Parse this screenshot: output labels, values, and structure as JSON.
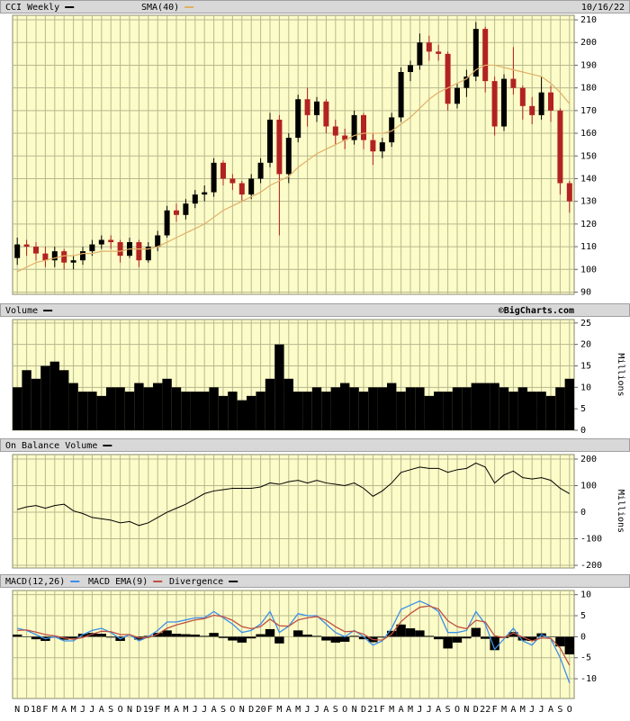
{
  "chart_data": [
    {
      "type": "candlestick",
      "date": "10/16/22",
      "down_color": "#b22222",
      "ylim": [
        89,
        212
      ],
      "yticks": [
        90,
        100,
        110,
        120,
        130,
        140,
        150,
        160,
        170,
        180,
        190,
        200,
        210
      ],
      "grid": true,
      "series": [
        {
          "name": "CCI Weekly",
          "color": "#000000",
          "open": [
            105,
            111,
            110,
            107,
            104,
            108,
            103,
            104,
            108,
            111,
            113,
            112,
            106,
            112,
            104,
            110,
            115,
            126,
            124,
            129,
            133,
            134,
            147,
            140,
            138,
            133,
            140,
            147,
            166,
            142,
            158,
            175,
            168,
            174,
            163,
            159,
            157,
            168,
            157,
            152,
            156,
            167,
            187,
            190,
            200,
            196,
            195,
            173,
            180,
            185,
            206,
            183,
            163,
            184,
            180,
            172,
            168,
            178,
            170,
            138
          ],
          "high": [
            114,
            113,
            112,
            110,
            110,
            109,
            106,
            110,
            113,
            115,
            115,
            113,
            114,
            113,
            112,
            117,
            128,
            129,
            131,
            135,
            137,
            149,
            148,
            142,
            139,
            142,
            149,
            169,
            168,
            160,
            177,
            180,
            176,
            175,
            166,
            162,
            170,
            169,
            160,
            158,
            169,
            189,
            192,
            204,
            203,
            199,
            196,
            182,
            188,
            209,
            207,
            185,
            186,
            198,
            181,
            176,
            185,
            181,
            171,
            139
          ],
          "low": [
            102,
            106,
            104,
            101,
            101,
            100,
            100,
            102,
            106,
            109,
            109,
            103,
            105,
            101,
            103,
            108,
            114,
            121,
            122,
            127,
            130,
            132,
            137,
            135,
            130,
            131,
            138,
            145,
            115,
            138,
            156,
            163,
            165,
            160,
            155,
            153,
            155,
            153,
            146,
            149,
            154,
            165,
            183,
            188,
            192,
            192,
            170,
            171,
            176,
            183,
            178,
            159,
            161,
            177,
            166,
            164,
            166,
            165,
            133,
            125
          ],
          "close": [
            111,
            110,
            107,
            104,
            108,
            103,
            104,
            108,
            111,
            113,
            112,
            106,
            112,
            104,
            110,
            115,
            126,
            124,
            129,
            133,
            134,
            147,
            140,
            138,
            133,
            140,
            147,
            166,
            142,
            158,
            175,
            168,
            174,
            163,
            159,
            157,
            168,
            157,
            152,
            156,
            167,
            187,
            190,
            200,
            196,
            195,
            173,
            180,
            185,
            206,
            183,
            163,
            184,
            180,
            172,
            168,
            178,
            170,
            138,
            130
          ]
        },
        {
          "name": "SMA(40)",
          "color": "#e0b068",
          "values": [
            99,
            101,
            103,
            104,
            105,
            106,
            106,
            107,
            107,
            108,
            108,
            108,
            109,
            109,
            109,
            110,
            112,
            114,
            116,
            118,
            120,
            123,
            126,
            128,
            130,
            132,
            134,
            137,
            139,
            141,
            145,
            148,
            151,
            153,
            155,
            157,
            159,
            160,
            160,
            160,
            161,
            164,
            167,
            171,
            175,
            178,
            180,
            182,
            184,
            188,
            190,
            190,
            189,
            188,
            187,
            186,
            185,
            182,
            178,
            173
          ]
        }
      ]
    },
    {
      "type": "bar",
      "title": "Volume",
      "source": "©BigCharts.com",
      "color": "#000000",
      "ylabel": "Millions",
      "ylim": [
        0,
        25.8
      ],
      "yticks": [
        0,
        5,
        10,
        15,
        20,
        25
      ],
      "grid": true,
      "values": [
        10,
        14,
        12,
        15,
        16,
        14,
        11,
        9,
        9,
        8,
        10,
        10,
        9,
        11,
        10,
        11,
        12,
        10,
        9,
        9,
        9,
        10,
        8,
        9,
        7,
        8,
        9,
        12,
        20,
        12,
        9,
        9,
        10,
        9,
        10,
        11,
        10,
        9,
        10,
        10,
        11,
        9,
        10,
        10,
        8,
        9,
        9,
        10,
        10,
        11,
        11,
        11,
        10,
        9,
        10,
        9,
        9,
        8,
        10,
        12
      ]
    },
    {
      "type": "line",
      "title": "On Balance Volume",
      "color": "#000000",
      "ylabel": "Millions",
      "ylim": [
        -210,
        217
      ],
      "yticks": [
        -200,
        -100,
        0,
        100,
        200
      ],
      "grid": true,
      "values": [
        10,
        20,
        25,
        15,
        25,
        30,
        5,
        -5,
        -20,
        -25,
        -30,
        -40,
        -35,
        -50,
        -40,
        -20,
        0,
        15,
        30,
        50,
        70,
        80,
        85,
        90,
        90,
        90,
        95,
        110,
        105,
        115,
        120,
        110,
        120,
        110,
        105,
        100,
        110,
        90,
        60,
        80,
        110,
        150,
        160,
        170,
        165,
        165,
        150,
        160,
        165,
        185,
        170,
        110,
        140,
        155,
        130,
        125,
        130,
        120,
        90,
        70
      ]
    },
    {
      "type": "macd",
      "ylim": [
        -14.7,
        11
      ],
      "yticks": [
        -10,
        -5,
        0,
        5,
        10
      ],
      "grid": true,
      "categories": [
        "N",
        "D",
        "18",
        "F",
        "M",
        "A",
        "M",
        "J",
        "J",
        "A",
        "S",
        "O",
        "N",
        "D",
        "19",
        "F",
        "M",
        "A",
        "M",
        "J",
        "J",
        "A",
        "S",
        "O",
        "N",
        "D",
        "20",
        "F",
        "M",
        "A",
        "M",
        "J",
        "J",
        "A",
        "S",
        "O",
        "N",
        "D",
        "21",
        "F",
        "M",
        "A",
        "M",
        "J",
        "J",
        "A",
        "S",
        "O",
        "N",
        "D",
        "22",
        "F",
        "M",
        "A",
        "M",
        "J",
        "J",
        "A",
        "S",
        "O"
      ],
      "series": [
        {
          "name": "MACD(12,26)",
          "color": "#3b8fe8",
          "style": "line",
          "values": [
            2,
            1.5,
            0.5,
            -0.5,
            0,
            -1,
            -1,
            0.5,
            1.5,
            2,
            1,
            -0.5,
            0.5,
            -1,
            0,
            1.5,
            3.5,
            3.5,
            4,
            4.5,
            4.5,
            6,
            4.5,
            3,
            1,
            1.5,
            3,
            6,
            1,
            2.5,
            5.5,
            5,
            5,
            3,
            1,
            0,
            1.5,
            0,
            -2,
            -1,
            2,
            6.5,
            7.5,
            8.5,
            7.5,
            6,
            1,
            1,
            1.5,
            6,
            3,
            -3,
            -0.5,
            2,
            -1,
            -2,
            0.5,
            -0.5,
            -5,
            -11
          ]
        },
        {
          "name": "MACD EMA(9)",
          "color": "#c05040",
          "style": "line",
          "values": [
            1.5,
            1.6,
            1.1,
            0.5,
            0.2,
            -0.3,
            -0.6,
            -0.2,
            0.6,
            1.3,
            1.2,
            0.5,
            0.5,
            -0.3,
            -0.2,
            0.6,
            2,
            2.8,
            3.4,
            4,
            4.3,
            5.1,
            4.8,
            3.9,
            2.4,
            1.9,
            2.4,
            4.2,
            2.6,
            2.5,
            4,
            4.5,
            4.8,
            3.9,
            2.4,
            1.2,
            1.3,
            0.6,
            -0.7,
            -0.8,
            0.6,
            3.6,
            5.5,
            7,
            7.3,
            6.6,
            3.8,
            2.4,
            1.9,
            3.9,
            3.5,
            0.2,
            -0.2,
            0.9,
            -0.1,
            -1,
            -0.3,
            -0.4,
            -2.7,
            -6.8
          ]
        },
        {
          "name": "Divergence",
          "color": "#000000",
          "style": "histogram",
          "values": [
            0.5,
            -0.1,
            -0.6,
            -1,
            -0.2,
            -0.7,
            -0.4,
            0.7,
            0.9,
            0.7,
            -0.2,
            -1,
            0,
            -0.7,
            0.2,
            0.9,
            1.5,
            0.7,
            0.6,
            0.5,
            0.2,
            0.9,
            -0.3,
            -0.9,
            -1.4,
            -0.4,
            0.6,
            1.8,
            -1.6,
            0,
            1.5,
            0.5,
            0.2,
            -0.9,
            -1.4,
            -1.2,
            0.2,
            -0.6,
            -1.3,
            -0.2,
            1.4,
            2.9,
            2,
            1.5,
            0.2,
            -0.6,
            -2.8,
            -1.4,
            -0.4,
            2.1,
            -0.5,
            -3.2,
            -0.3,
            1.1,
            -0.9,
            -1,
            0.8,
            -0.1,
            -2.3,
            -4.2
          ]
        }
      ]
    }
  ]
}
